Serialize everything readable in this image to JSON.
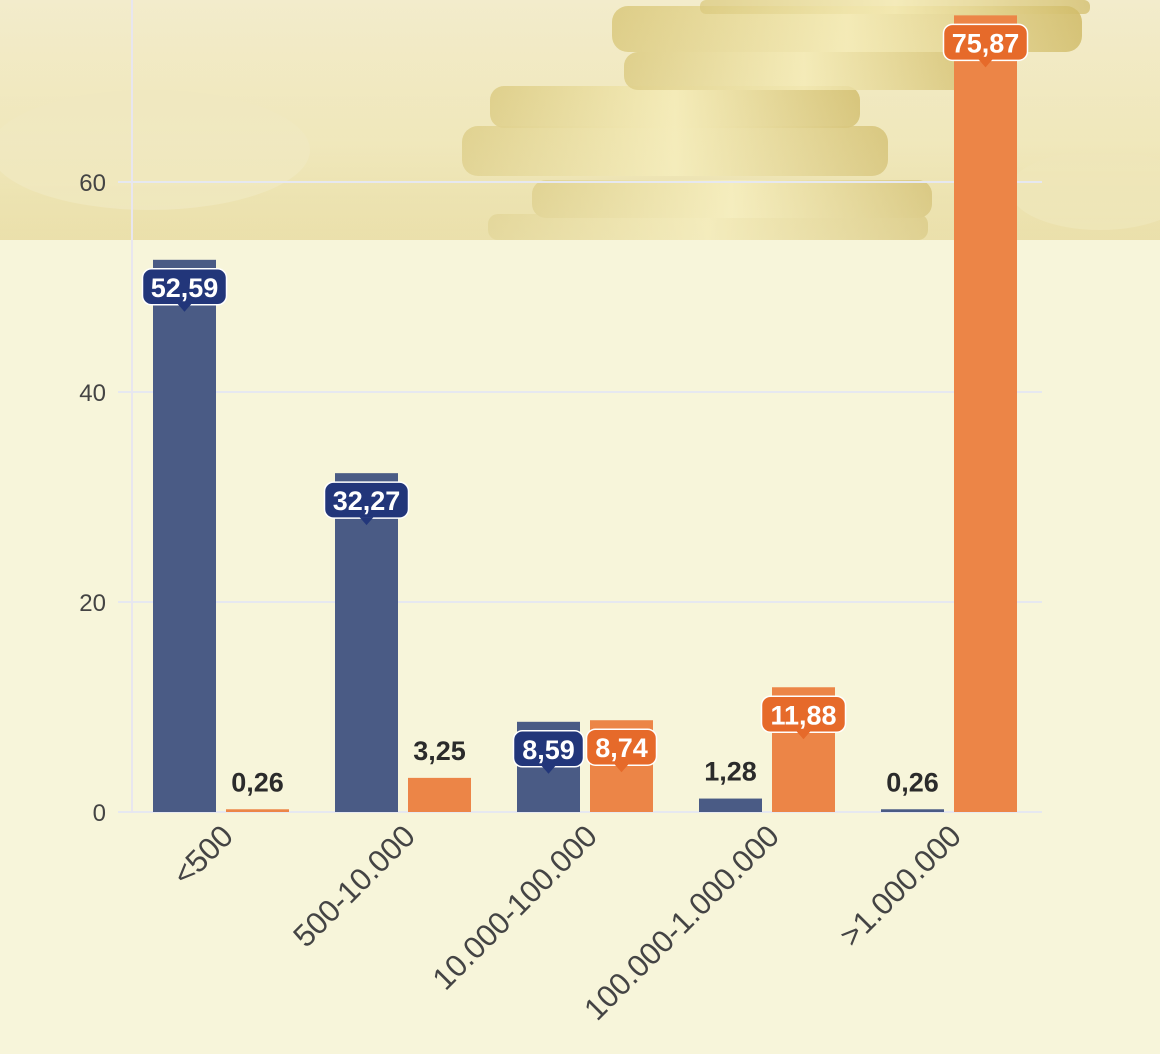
{
  "chart_data": {
    "type": "bar",
    "categories": [
      "<500",
      "500-10.000",
      "10.000-100.000",
      "100.000-1.000.000",
      ">1.000.000"
    ],
    "series": [
      {
        "values": [
          52.59,
          32.27,
          8.59,
          1.28,
          0.26
        ],
        "labels": [
          "52,59",
          "32,27",
          "8,59",
          "1,28",
          "0,26"
        ],
        "color": "#4a5b85",
        "label_bg": "#22367a"
      },
      {
        "values": [
          0.26,
          3.25,
          8.74,
          11.88,
          75.87
        ],
        "labels": [
          "0,26",
          "3,25",
          "8,74",
          "11,88",
          "75,87"
        ],
        "color": "#ec8547",
        "label_bg": "#e66a2a"
      }
    ],
    "y_ticks": [
      0,
      20,
      40,
      60
    ],
    "y_tick_labels": [
      "0",
      "20",
      "40",
      "60"
    ],
    "ylim": [
      0,
      77
    ],
    "grid": true,
    "legend": "none",
    "background": "#f7f5da"
  }
}
